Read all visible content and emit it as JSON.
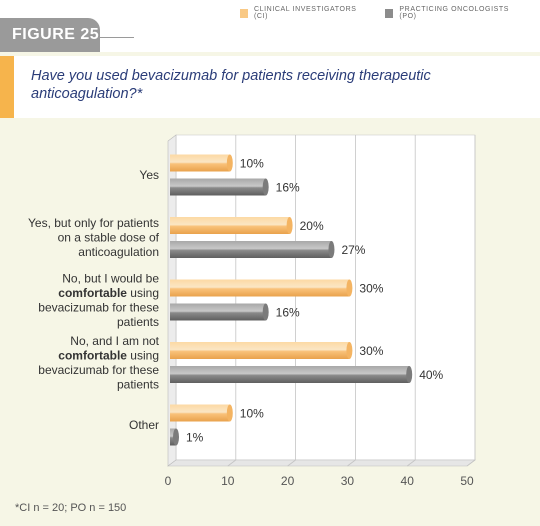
{
  "legend": {
    "ci_label": "CLINICAL INVESTIGATORS (CI)",
    "po_label": "PRACTICING ONCOLOGISTS (PO)"
  },
  "figure_label": "FIGURE 25",
  "question": "Have you used bevacizumab for patients receiving therapeutic anticoagulation?*",
  "footnote": "*CI n = 20; PO n = 150",
  "colors": {
    "ci": "#f9b867",
    "po": "#8c8c8c",
    "accent": "#f6b44c",
    "title": "#2a3c78"
  },
  "chart_data": {
    "type": "bar",
    "orientation": "horizontal",
    "categories": [
      [
        "Yes"
      ],
      [
        "Yes, but only for patients",
        "on a stable dose of",
        "anticoagulation"
      ],
      [
        "No, but I would be",
        "**comfortable** using",
        "bevacizumab for these",
        "patients"
      ],
      [
        "No, and I am not",
        "**comfortable** using",
        "bevacizumab for these",
        "patients"
      ],
      [
        "Other"
      ]
    ],
    "series": [
      {
        "name": "CLINICAL INVESTIGATORS (CI)",
        "values": [
          10,
          20,
          30,
          30,
          10
        ],
        "labels": [
          "10%",
          "20%",
          "30%",
          "30%",
          "10%"
        ]
      },
      {
        "name": "PRACTICING ONCOLOGISTS (PO)",
        "values": [
          16,
          27,
          16,
          40,
          1
        ],
        "labels": [
          "16%",
          "27%",
          "16%",
          "40%",
          "1%"
        ]
      }
    ],
    "xlim": [
      0,
      50
    ],
    "xticks": [
      "0",
      "10",
      "20",
      "30",
      "40",
      "50"
    ],
    "grid": true,
    "legend": "top-right"
  }
}
